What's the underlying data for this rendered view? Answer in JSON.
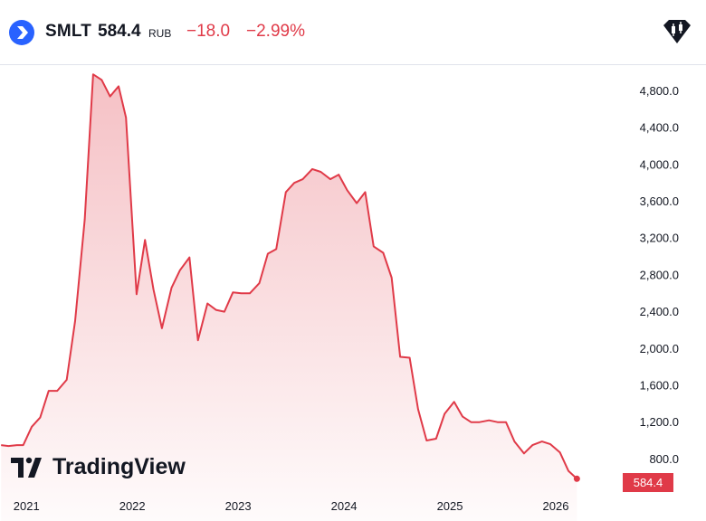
{
  "header": {
    "symbol": "SMLT",
    "price": "584.4",
    "currency": "RUB",
    "change": "−18.0",
    "change_pct": "−2.99%"
  },
  "branding": {
    "name": "TradingView"
  },
  "last_price_label": "584.4",
  "colors": {
    "line": "#e03a48",
    "accent": "#2962ff"
  },
  "chart_data": {
    "type": "area",
    "title": "",
    "xlabel": "",
    "ylabel": "",
    "x_ticks": [
      "2021",
      "2022",
      "2023",
      "2024",
      "2025",
      "2026"
    ],
    "y_ticks": [
      "800.0",
      "1,200.0",
      "1,600.0",
      "2,000.0",
      "2,400.0",
      "2,800.0",
      "3,200.0",
      "3,600.0",
      "4,000.0",
      "4,400.0",
      "4,800.0"
    ],
    "ylim": [
      440,
      5080
    ],
    "xlim": [
      2020.75,
      2026.65
    ],
    "grid": false,
    "series": [
      {
        "x": [
          2020.76,
          2020.83,
          2020.91,
          2020.97,
          2021.05,
          2021.13,
          2021.21,
          2021.29,
          2021.38,
          2021.46,
          2021.55,
          2021.63,
          2021.71,
          2021.79,
          2021.87,
          2021.94,
          2022.04,
          2022.12,
          2022.2,
          2022.28,
          2022.37,
          2022.45,
          2022.54,
          2022.62,
          2022.71,
          2022.79,
          2022.87,
          2022.95,
          2023.03,
          2023.11,
          2023.2,
          2023.28,
          2023.36,
          2023.45,
          2023.53,
          2023.61,
          2023.7,
          2023.78,
          2023.87,
          2023.95,
          2024.03,
          2024.12,
          2024.2,
          2024.28,
          2024.37,
          2024.45,
          2024.53,
          2024.62,
          2024.7,
          2024.78,
          2024.87,
          2024.95,
          2025.04,
          2025.12,
          2025.2,
          2025.28,
          2025.37,
          2025.45,
          2025.53,
          2025.61,
          2025.7,
          2025.78,
          2025.87,
          2025.95,
          2026.04,
          2026.12,
          2026.2,
          2026.29,
          2026.37
        ],
        "y": [
          950,
          940,
          950,
          950,
          1150,
          1250,
          1540,
          1540,
          1660,
          2300,
          3400,
          4980,
          4920,
          4740,
          4850,
          4510,
          2590,
          3180,
          2640,
          2220,
          2660,
          2850,
          2990,
          2090,
          2490,
          2420,
          2400,
          2610,
          2600,
          2600,
          2710,
          3030,
          3080,
          3700,
          3800,
          3840,
          3950,
          3920,
          3840,
          3890,
          3720,
          3580,
          3700,
          3110,
          3040,
          2770,
          1910,
          1900,
          1340,
          1000,
          1020,
          1290,
          1420,
          1260,
          1200,
          1200,
          1220,
          1200,
          1200,
          990,
          860,
          950,
          990,
          960,
          870,
          670,
          584.4,
          null,
          null
        ]
      }
    ]
  }
}
